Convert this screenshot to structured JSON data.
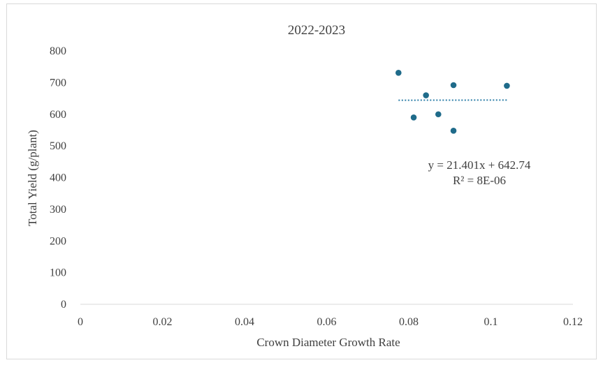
{
  "chart_data": {
    "type": "scatter",
    "title": "2022-2023",
    "xlabel": "Crown Diameter Growth Rate",
    "ylabel": "Total Yield  (g/plant)",
    "xlim": [
      0,
      0.12
    ],
    "ylim": [
      0,
      800
    ],
    "x_ticks": [
      "0",
      "0.02",
      "0.04",
      "0.06",
      "0.08",
      "0.1",
      "0.12"
    ],
    "y_ticks": [
      "0",
      "100",
      "200",
      "300",
      "400",
      "500",
      "600",
      "700",
      "800"
    ],
    "grid": false,
    "legend": "none",
    "marker_color": "#1f6b8a",
    "trendline_color": "#2e7fa8",
    "series": [
      {
        "points": [
          {
            "x": 0.0775,
            "y": 731
          },
          {
            "x": 0.0812,
            "y": 590
          },
          {
            "x": 0.0842,
            "y": 660
          },
          {
            "x": 0.0872,
            "y": 600
          },
          {
            "x": 0.0909,
            "y": 692
          },
          {
            "x": 0.0909,
            "y": 548
          },
          {
            "x": 0.1039,
            "y": 690
          }
        ]
      }
    ],
    "trendline": {
      "type": "linear",
      "slope": 21.401,
      "intercept": 642.74,
      "x_range": [
        0.0775,
        0.1039
      ],
      "equation": "y = 21.401x + 642.74",
      "r_squared": "R² = 8E-06"
    }
  }
}
